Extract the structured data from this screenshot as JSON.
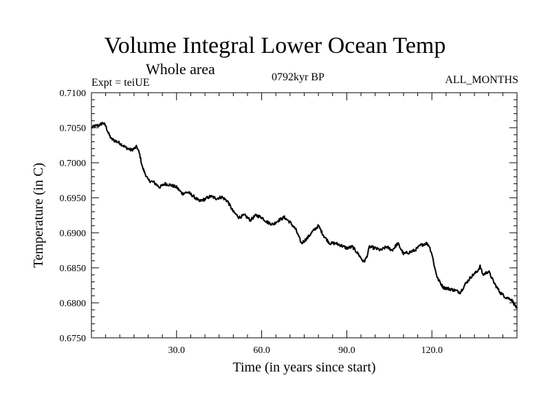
{
  "header": {
    "title": "Volume Integral Lower Ocean Temp",
    "subtitle": "Whole area",
    "experiment": "Expt = teiUE",
    "period": "0792kyr BP",
    "months": "ALL_MONTHS"
  },
  "chart_data": {
    "type": "line",
    "title": "Volume Integral Lower Ocean Temp",
    "xlabel": "Time (in years since start)",
    "ylabel": "Temperature (in C)",
    "xlim": [
      0,
      150
    ],
    "ylim": [
      0.675,
      0.71
    ],
    "x_ticks": [
      30,
      60,
      90,
      120
    ],
    "x_tick_labels": [
      "30.0",
      "60.0",
      "90.0",
      "120.0"
    ],
    "y_ticks": [
      0.675,
      0.68,
      0.685,
      0.69,
      0.695,
      0.7,
      0.705,
      0.71
    ],
    "y_tick_labels": [
      "0.6750",
      "0.6800",
      "0.6850",
      "0.6900",
      "0.6950",
      "0.7000",
      "0.7050",
      "0.7100"
    ],
    "grid": false,
    "series": [
      {
        "name": "Volume Integral Lower Ocean Temp",
        "x": [
          0,
          1,
          2,
          3,
          4,
          5,
          6,
          7,
          8,
          10,
          12,
          14,
          15,
          16,
          17,
          18,
          19,
          20,
          22,
          24,
          26,
          28,
          30,
          32,
          34,
          36,
          38,
          40,
          42,
          44,
          46,
          48,
          50,
          52,
          54,
          56,
          58,
          60,
          62,
          64,
          66,
          68,
          70,
          72,
          74,
          76,
          78,
          80,
          82,
          84,
          86,
          88,
          90,
          92,
          94,
          96,
          97,
          98,
          100,
          102,
          104,
          106,
          108,
          110,
          112,
          114,
          116,
          118,
          119,
          120,
          121,
          122,
          124,
          126,
          128,
          130,
          132,
          134,
          136,
          137,
          138,
          140,
          142,
          144,
          146,
          148,
          150
        ],
        "values": [
          0.705,
          0.7052,
          0.7053,
          0.7054,
          0.7057,
          0.7053,
          0.7042,
          0.7034,
          0.7032,
          0.7028,
          0.7022,
          0.7018,
          0.702,
          0.7023,
          0.7012,
          0.6993,
          0.6984,
          0.6975,
          0.6972,
          0.6965,
          0.697,
          0.6968,
          0.6965,
          0.6956,
          0.6958,
          0.6952,
          0.6945,
          0.6948,
          0.6952,
          0.6949,
          0.6951,
          0.6945,
          0.693,
          0.6922,
          0.6925,
          0.6918,
          0.6925,
          0.6922,
          0.6915,
          0.6912,
          0.6918,
          0.6922,
          0.6915,
          0.6905,
          0.6885,
          0.6892,
          0.6902,
          0.691,
          0.6895,
          0.6885,
          0.6885,
          0.6882,
          0.6878,
          0.688,
          0.687,
          0.6858,
          0.6865,
          0.688,
          0.6878,
          0.6875,
          0.688,
          0.6875,
          0.6885,
          0.687,
          0.6872,
          0.6875,
          0.6882,
          0.6885,
          0.6882,
          0.687,
          0.685,
          0.6835,
          0.6822,
          0.682,
          0.6818,
          0.6815,
          0.6828,
          0.6838,
          0.6845,
          0.6852,
          0.684,
          0.6845,
          0.6828,
          0.6815,
          0.6808,
          0.6805,
          0.6792
        ]
      }
    ]
  }
}
